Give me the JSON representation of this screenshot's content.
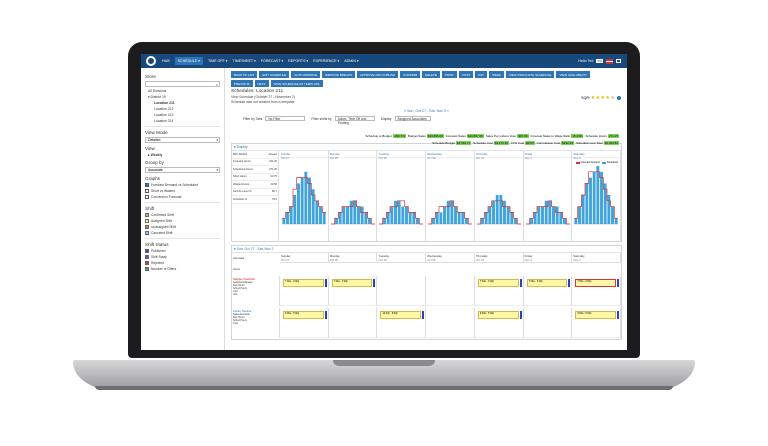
{
  "nav": {
    "items": [
      "HUB",
      "SCHEDULE ▾",
      "TIME OFF ▾",
      "TIMESHEET ▾",
      "FORECAST ▾",
      "REPORTS ▾",
      "EXPERIENCE ▾",
      "ADMIN ▾"
    ],
    "active_index": 1,
    "user": "Hello Ted",
    "initials": "TW"
  },
  "sidebar": {
    "store_heading": "Store",
    "tree": [
      {
        "label": "All Divisions",
        "level": 1,
        "bold": false
      },
      {
        "label": "▾ District 19",
        "level": 1,
        "bold": false
      },
      {
        "label": "Location 211",
        "level": 2,
        "bold": true
      },
      {
        "label": "Location 212",
        "level": 2,
        "bold": false
      },
      {
        "label": "Location 213",
        "level": 2,
        "bold": false
      },
      {
        "label": "Location 214",
        "level": 2,
        "bold": false
      }
    ],
    "view_mode_heading": "View Mode",
    "view_mode_value": "Detailed",
    "view_heading": "View",
    "view_value": "▸ Weekly",
    "group_heading": "Group by",
    "group_value": "Associate",
    "graphs_heading": "Graphs",
    "graph_options": [
      {
        "label": "Forecast Demand vs Scheduled",
        "checked": true
      },
      {
        "label": "Short vs Wasted",
        "checked": false
      },
      {
        "label": "Conversion Forecast",
        "checked": false
      }
    ],
    "shift_heading": "Shift",
    "shift_items": [
      {
        "label": "Confirmed Shift",
        "color": "#8fd16b"
      },
      {
        "label": "Assigned Shift",
        "color": "#fff7a6"
      },
      {
        "label": "Unassigned Shift",
        "color": "#e07a2f"
      },
      {
        "label": "Canceled Shift",
        "color": "#9ec4ee"
      }
    ],
    "status_heading": "Shift Status",
    "status_items": [
      {
        "label": "Published",
        "color": "#2b3fc8"
      },
      {
        "label": "Shift Swap",
        "color": "#7d3fb5"
      },
      {
        "label": "Rejected",
        "color": "#d33333"
      },
      {
        "label": "Number of Offers",
        "color": "#45b043"
      }
    ]
  },
  "toolbar": {
    "row1": [
      "BACK TO LIST",
      "EDIT SCHEDULE",
      "AUTO IMPROVE",
      "IMPROVE BREAKS",
      "APPROVE AND PUBLISH",
      "CONFIRM",
      "DELETE",
      "PRINT",
      "COST",
      "DAY",
      "WEEK",
      "VIEW ASSOCIATE SCHEDULE",
      "VIEW AVAILABILITY"
    ],
    "row2": [
      "PREVIOUS",
      "NEXT",
      "SAVE SCHEDULE AS TEMPLATE"
    ]
  },
  "schedule": {
    "title": "Schedules: Location 211",
    "subtitle": "View Schedule (October 27 - November 2)",
    "note": "Schedule was not created from a template",
    "score_label": "SQR:",
    "stars": 4
  },
  "week_nav": "« Sun, Oct 27 - Sat, Nov 2 »",
  "filters": {
    "task_label": "Filter by Task",
    "task_value": "No Filter",
    "shift_label": "Filter shifts by",
    "shift_value": "Active, Time Off and Floating",
    "display_label": "Display",
    "display_value": "Assigned Associates"
  },
  "metrics_row1": [
    {
      "label": "Schedule to Budget",
      "value": "-390.7%"
    },
    {
      "label": "Budget Sales",
      "value": "$43,896.00"
    },
    {
      "label": "Forecast Sales",
      "value": "$43,897.00"
    },
    {
      "label": "Sales Per Labour Hour",
      "value": "$97.80"
    },
    {
      "label": "Forecast Sales to Wage Ratio",
      "value": "15.43%"
    },
    {
      "label": "Schedule Hours",
      "value": "271.25"
    }
  ],
  "metrics_row2": [
    {
      "label": "Schedule Budget",
      "value": "$3,164.71"
    },
    {
      "label": "Schedule Cost",
      "value": "$3,172.40"
    },
    {
      "label": "FTO Cost",
      "value": "$0.00"
    },
    {
      "label": "Commission Cost",
      "value": "$192.44"
    },
    {
      "label": "Schedule Cost Total",
      "value": "$3,364.84"
    }
  ],
  "display_section": "▾ Display",
  "stats": [
    {
      "label": "Bill / Allotted",
      "value": "Actuals"
    },
    {
      "label": "Forecast Hours",
      "value": "341.25"
    },
    {
      "label": "Scheduled Hours",
      "value": "271.25"
    },
    {
      "label": "Short Hours",
      "value": "63.75"
    },
    {
      "label": "Wasted Hours",
      "value": "23.50"
    },
    {
      "label": "Service Level %",
      "value": "80.7"
    },
    {
      "label": "Schedule %",
      "value": "78.0"
    }
  ],
  "chart_legend": [
    "Forecast Demand",
    "Scheduled"
  ],
  "days": [
    {
      "name": "Sunday",
      "date": "Oct 27"
    },
    {
      "name": "Monday",
      "date": "Oct 28"
    },
    {
      "name": "Tuesday",
      "date": "Oct 29"
    },
    {
      "name": "Wednesday",
      "date": "Oct 30"
    },
    {
      "name": "Thursday",
      "date": "Oct 31"
    },
    {
      "name": "Friday",
      "date": "Nov 1"
    },
    {
      "name": "Saturday",
      "date": "Nov 2"
    }
  ],
  "chart_data": {
    "type": "bar",
    "series": [
      {
        "name": "Scheduled",
        "values": [
          [
            1,
            2,
            3,
            5,
            7,
            8,
            9,
            8,
            6,
            4,
            3,
            2
          ],
          [
            0,
            1,
            2,
            3,
            3,
            4,
            4,
            3,
            3,
            2,
            1,
            0
          ],
          [
            0,
            1,
            2,
            3,
            4,
            4,
            3,
            3,
            2,
            2,
            1,
            0
          ],
          [
            0,
            1,
            2,
            2,
            3,
            4,
            4,
            3,
            2,
            2,
            1,
            0
          ],
          [
            0,
            1,
            2,
            3,
            4,
            5,
            5,
            4,
            3,
            2,
            1,
            0
          ],
          [
            0,
            1,
            2,
            3,
            3,
            4,
            4,
            3,
            3,
            2,
            1,
            0
          ],
          [
            1,
            3,
            5,
            7,
            8,
            9,
            10,
            9,
            7,
            5,
            3,
            1
          ]
        ]
      },
      {
        "name": "Forecast Demand",
        "values": [
          [
            1,
            2,
            3,
            6,
            8,
            8,
            8,
            7,
            5,
            4,
            3,
            2
          ],
          [
            0,
            1,
            2,
            3,
            3,
            3,
            4,
            3,
            2,
            2,
            1,
            0
          ],
          [
            0,
            1,
            2,
            3,
            3,
            4,
            4,
            3,
            2,
            2,
            1,
            0
          ],
          [
            0,
            1,
            2,
            3,
            3,
            3,
            4,
            3,
            2,
            2,
            1,
            0
          ],
          [
            0,
            1,
            2,
            3,
            4,
            4,
            4,
            3,
            3,
            2,
            1,
            0
          ],
          [
            0,
            1,
            2,
            3,
            3,
            3,
            4,
            3,
            2,
            2,
            1,
            0
          ],
          [
            1,
            3,
            5,
            7,
            9,
            9,
            9,
            8,
            6,
            4,
            3,
            1
          ]
        ]
      }
    ],
    "colors": {
      "Scheduled": "#3fa3dc",
      "Forecast Demand": "#d33333"
    }
  },
  "lower": {
    "header": "▾ Sun, Oct 27 - Sat, Nov 2",
    "row_label": "Associate",
    "hours_label": "Hours",
    "employees": [
      {
        "name": "Stephen Kucinski",
        "role": "Assistant Manager",
        "lines": [
          "Req Hours",
          "Sched Hours",
          "Cost",
          "Unit"
        ],
        "shifts": [
          "7:00a - 3:00p",
          "7:00a - 3:00p",
          "",
          "",
          "7:00a - 3:00p",
          "7:00a - 3:00p",
          "7:00a - 3:00p"
        ]
      },
      {
        "name": "Ashley Medina",
        "role": "Sales Associate",
        "lines": [
          "Req Hours",
          "Sched Hours",
          "Cost"
        ],
        "shifts": [
          "9:00a - 5:00p",
          "",
          "12:00p - 8:00p",
          "",
          "9:00a - 5:00p",
          "",
          "9:00a - 5:00p"
        ]
      }
    ]
  }
}
